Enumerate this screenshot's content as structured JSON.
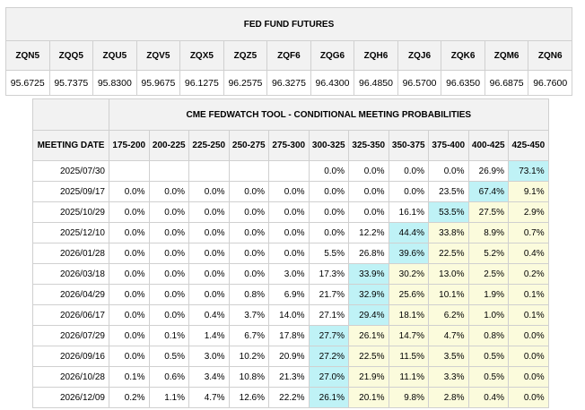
{
  "futures": {
    "title": "FED FUND FUTURES",
    "symbols": [
      "ZQN5",
      "ZQQ5",
      "ZQU5",
      "ZQV5",
      "ZQX5",
      "ZQZ5",
      "ZQF6",
      "ZQG6",
      "ZQH6",
      "ZQJ6",
      "ZQK6",
      "ZQM6",
      "ZQN6"
    ],
    "prices": [
      "95.6725",
      "95.7375",
      "95.8300",
      "95.9675",
      "96.1275",
      "96.2575",
      "96.3275",
      "96.4300",
      "96.4850",
      "96.5700",
      "96.6350",
      "96.6875",
      "96.7600"
    ]
  },
  "fedwatch": {
    "title": "CME FEDWATCH TOOL - CONDITIONAL MEETING PROBABILITIES",
    "date_header": "MEETING DATE",
    "ranges": [
      "175-200",
      "200-225",
      "225-250",
      "250-275",
      "275-300",
      "300-325",
      "325-350",
      "350-375",
      "375-400",
      "400-425",
      "425-450"
    ],
    "colors": {
      "none": "#ffffff",
      "yellow": "#fbfbdc",
      "cyan": "#bff2f6",
      "header": "#f2f2f2"
    },
    "rows": [
      {
        "date": "2025/07/30",
        "values": [
          "",
          "",
          "",
          "",
          "",
          "0.0%",
          "0.0%",
          "0.0%",
          "0.0%",
          "26.9%",
          "73.1%"
        ],
        "shade": [
          "n",
          "n",
          "n",
          "n",
          "n",
          "n",
          "n",
          "n",
          "n",
          "n",
          "c"
        ]
      },
      {
        "date": "2025/09/17",
        "values": [
          "0.0%",
          "0.0%",
          "0.0%",
          "0.0%",
          "0.0%",
          "0.0%",
          "0.0%",
          "0.0%",
          "23.5%",
          "67.4%",
          "9.1%"
        ],
        "shade": [
          "n",
          "n",
          "n",
          "n",
          "n",
          "n",
          "n",
          "n",
          "n",
          "c",
          "y"
        ]
      },
      {
        "date": "2025/10/29",
        "values": [
          "0.0%",
          "0.0%",
          "0.0%",
          "0.0%",
          "0.0%",
          "0.0%",
          "0.0%",
          "16.1%",
          "53.5%",
          "27.5%",
          "2.9%"
        ],
        "shade": [
          "n",
          "n",
          "n",
          "n",
          "n",
          "n",
          "n",
          "n",
          "c",
          "y",
          "y"
        ]
      },
      {
        "date": "2025/12/10",
        "values": [
          "0.0%",
          "0.0%",
          "0.0%",
          "0.0%",
          "0.0%",
          "0.0%",
          "12.2%",
          "44.4%",
          "33.8%",
          "8.9%",
          "0.7%"
        ],
        "shade": [
          "n",
          "n",
          "n",
          "n",
          "n",
          "n",
          "n",
          "c",
          "y",
          "y",
          "y"
        ]
      },
      {
        "date": "2026/01/28",
        "values": [
          "0.0%",
          "0.0%",
          "0.0%",
          "0.0%",
          "0.0%",
          "5.5%",
          "26.8%",
          "39.6%",
          "22.5%",
          "5.2%",
          "0.4%"
        ],
        "shade": [
          "n",
          "n",
          "n",
          "n",
          "n",
          "n",
          "n",
          "c",
          "y",
          "y",
          "y"
        ]
      },
      {
        "date": "2026/03/18",
        "values": [
          "0.0%",
          "0.0%",
          "0.0%",
          "0.0%",
          "3.0%",
          "17.3%",
          "33.9%",
          "30.2%",
          "13.0%",
          "2.5%",
          "0.2%"
        ],
        "shade": [
          "n",
          "n",
          "n",
          "n",
          "n",
          "n",
          "c",
          "y",
          "y",
          "y",
          "y"
        ]
      },
      {
        "date": "2026/04/29",
        "values": [
          "0.0%",
          "0.0%",
          "0.0%",
          "0.8%",
          "6.9%",
          "21.7%",
          "32.9%",
          "25.6%",
          "10.1%",
          "1.9%",
          "0.1%"
        ],
        "shade": [
          "n",
          "n",
          "n",
          "n",
          "n",
          "n",
          "c",
          "y",
          "y",
          "y",
          "y"
        ]
      },
      {
        "date": "2026/06/17",
        "values": [
          "0.0%",
          "0.0%",
          "0.4%",
          "3.7%",
          "14.0%",
          "27.1%",
          "29.4%",
          "18.1%",
          "6.2%",
          "1.0%",
          "0.1%"
        ],
        "shade": [
          "n",
          "n",
          "n",
          "n",
          "n",
          "n",
          "c",
          "y",
          "y",
          "y",
          "y"
        ]
      },
      {
        "date": "2026/07/29",
        "values": [
          "0.0%",
          "0.1%",
          "1.4%",
          "6.7%",
          "17.8%",
          "27.7%",
          "26.1%",
          "14.7%",
          "4.7%",
          "0.8%",
          "0.0%"
        ],
        "shade": [
          "n",
          "n",
          "n",
          "n",
          "n",
          "c",
          "y",
          "y",
          "y",
          "y",
          "y"
        ]
      },
      {
        "date": "2026/09/16",
        "values": [
          "0.0%",
          "0.5%",
          "3.0%",
          "10.2%",
          "20.9%",
          "27.2%",
          "22.5%",
          "11.5%",
          "3.5%",
          "0.5%",
          "0.0%"
        ],
        "shade": [
          "n",
          "n",
          "n",
          "n",
          "n",
          "c",
          "y",
          "y",
          "y",
          "y",
          "y"
        ]
      },
      {
        "date": "2026/10/28",
        "values": [
          "0.1%",
          "0.6%",
          "3.4%",
          "10.8%",
          "21.3%",
          "27.0%",
          "21.9%",
          "11.1%",
          "3.3%",
          "0.5%",
          "0.0%"
        ],
        "shade": [
          "n",
          "n",
          "n",
          "n",
          "n",
          "c",
          "y",
          "y",
          "y",
          "y",
          "y"
        ]
      },
      {
        "date": "2026/12/09",
        "values": [
          "0.2%",
          "1.1%",
          "4.7%",
          "12.6%",
          "22.2%",
          "26.1%",
          "20.1%",
          "9.8%",
          "2.8%",
          "0.4%",
          "0.0%"
        ],
        "shade": [
          "n",
          "n",
          "n",
          "n",
          "n",
          "c",
          "y",
          "y",
          "y",
          "y",
          "y"
        ]
      }
    ]
  }
}
